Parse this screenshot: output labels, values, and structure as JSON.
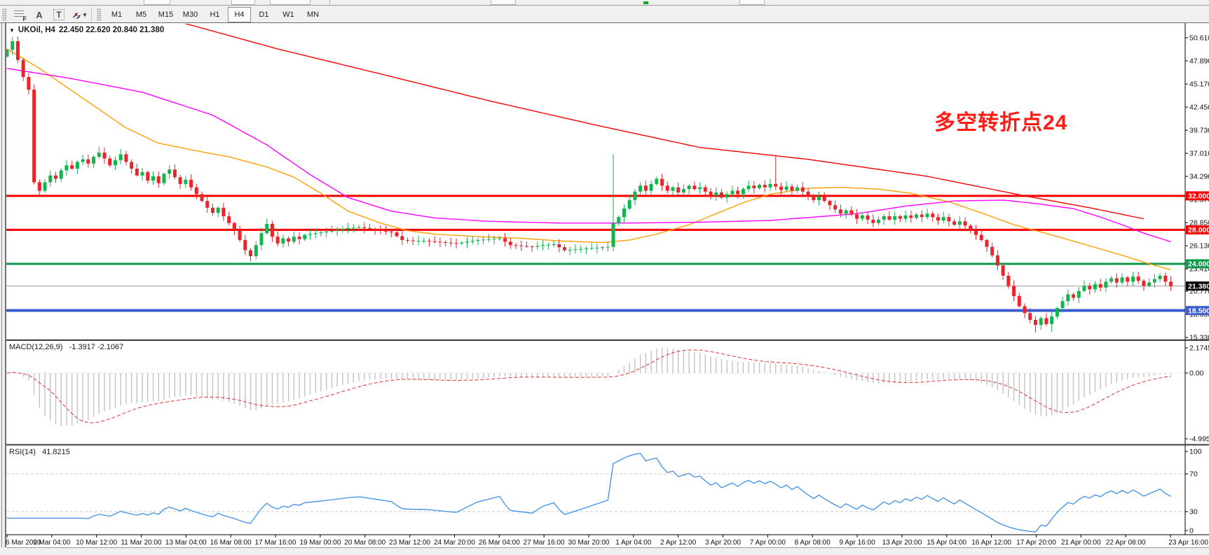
{
  "toolbar": {
    "tools": [
      {
        "id": "fibonacci-tool",
        "glyph": "F"
      },
      {
        "id": "text-tool",
        "glyph": "A"
      },
      {
        "id": "text-label-tool",
        "glyph": "T"
      },
      {
        "id": "arrow-tool",
        "glyph": "arrows",
        "dropdown": "▾"
      }
    ],
    "timeframes": [
      "M1",
      "M5",
      "M15",
      "M30",
      "H1",
      "H4",
      "D1",
      "W1",
      "MN"
    ],
    "active_timeframe": "H4"
  },
  "chart": {
    "title": {
      "collapse_glyph": "▼",
      "symbol": "UKOil, H4",
      "ohlc": "22.450 22.620 20.840 21.380"
    },
    "annotation": {
      "text": "多空转折点24",
      "color": "#fd1d15"
    }
  },
  "chart_data": {
    "type": "candlestick",
    "symbol": "UKOil",
    "timeframe": "H4",
    "ohlc_display": {
      "open": "22.450",
      "high": "22.620",
      "low": "20.840",
      "close": "21.380"
    },
    "price_axis_range": [
      15.33,
      50.61
    ],
    "price_axis_ticks": [
      "50.610",
      "47.890",
      "45.170",
      "42.450",
      "39.730",
      "37.010",
      "34.290",
      "31.570",
      "28.850",
      "26.130",
      "23.410",
      "20.770",
      "18.050",
      "15.330"
    ],
    "hlines": [
      {
        "price": 32.0,
        "label": "32.000",
        "color": "#f40000",
        "width": 3
      },
      {
        "price": 28.0,
        "label": "28.000",
        "color": "#f40000",
        "width": 3
      },
      {
        "price": 24.0,
        "label": "24.000",
        "color": "#0a9a4a",
        "width": 3
      },
      {
        "price": 18.5,
        "label": "18.500",
        "color": "#3a5ecf",
        "width": 4
      }
    ],
    "bid_line": {
      "price": 21.38,
      "label": "21.380",
      "line_color": "#9a9a9a",
      "tag_color": "#000000"
    },
    "candles": {
      "count": 216,
      "up_color": "#12b54d",
      "down_color": "#e8252a",
      "close_anchors": [
        [
          0,
          49.2
        ],
        [
          1,
          50.2
        ],
        [
          2,
          48.0
        ],
        [
          3,
          46.0
        ],
        [
          4,
          44.5
        ],
        [
          5,
          33.6
        ],
        [
          6,
          32.6
        ],
        [
          7,
          33.6
        ],
        [
          8,
          34.4
        ],
        [
          9,
          34.0
        ],
        [
          10,
          35.0
        ],
        [
          11,
          35.6
        ],
        [
          12,
          35.2
        ],
        [
          13,
          36.0
        ],
        [
          14,
          36.3
        ],
        [
          15,
          35.8
        ],
        [
          16,
          36.6
        ],
        [
          17,
          37.1
        ],
        [
          18,
          36.4
        ],
        [
          19,
          35.6
        ],
        [
          20,
          36.2
        ],
        [
          21,
          36.9
        ],
        [
          22,
          36.0
        ],
        [
          23,
          35.2
        ],
        [
          24,
          34.4
        ],
        [
          25,
          34.8
        ],
        [
          26,
          33.8
        ],
        [
          27,
          34.3
        ],
        [
          28,
          33.5
        ],
        [
          29,
          34.6
        ],
        [
          30,
          35.1
        ],
        [
          31,
          34.2
        ],
        [
          32,
          33.4
        ],
        [
          33,
          33.9
        ],
        [
          34,
          33.0
        ],
        [
          35,
          32.2
        ],
        [
          36,
          31.4
        ],
        [
          37,
          30.6
        ],
        [
          38,
          30.0
        ],
        [
          39,
          30.6
        ],
        [
          40,
          29.6
        ],
        [
          41,
          28.8
        ],
        [
          42,
          28.0
        ],
        [
          43,
          26.8
        ],
        [
          44,
          25.6
        ],
        [
          45,
          24.9
        ],
        [
          46,
          26.2
        ],
        [
          47,
          27.6
        ],
        [
          48,
          28.7
        ],
        [
          49,
          27.2
        ],
        [
          50,
          26.4
        ],
        [
          51,
          27.0
        ],
        [
          52,
          26.6
        ],
        [
          53,
          27.2
        ],
        [
          54,
          26.9
        ],
        [
          55,
          27.4
        ],
        [
          57,
          27.6
        ],
        [
          59,
          27.8
        ],
        [
          61,
          28.0
        ],
        [
          63,
          28.2
        ],
        [
          65,
          28.3
        ],
        [
          67,
          28.1
        ],
        [
          69,
          27.9
        ],
        [
          71,
          27.7
        ],
        [
          73,
          26.8
        ],
        [
          75,
          26.7
        ],
        [
          77,
          26.7
        ],
        [
          79,
          26.6
        ],
        [
          81,
          26.5
        ],
        [
          83,
          26.4
        ],
        [
          85,
          26.6
        ],
        [
          87,
          26.8
        ],
        [
          89,
          26.9
        ],
        [
          91,
          27.0
        ],
        [
          93,
          26.2
        ],
        [
          95,
          26.1
        ],
        [
          97,
          26.0
        ],
        [
          99,
          26.2
        ],
        [
          101,
          26.3
        ],
        [
          103,
          25.6
        ],
        [
          105,
          25.7
        ],
        [
          107,
          25.8
        ],
        [
          109,
          25.9
        ],
        [
          111,
          26.0
        ],
        [
          112,
          28.8
        ],
        [
          113,
          29.5
        ],
        [
          114,
          30.5
        ],
        [
          115,
          31.5
        ],
        [
          116,
          32.5
        ],
        [
          117,
          33.2
        ],
        [
          118,
          32.6
        ],
        [
          119,
          33.4
        ],
        [
          120,
          34.0
        ],
        [
          121,
          33.2
        ],
        [
          122,
          32.6
        ],
        [
          123,
          33.0
        ],
        [
          124,
          32.4
        ],
        [
          125,
          32.8
        ],
        [
          126,
          33.2
        ],
        [
          127,
          32.8
        ],
        [
          128,
          33.0
        ],
        [
          129,
          32.5
        ],
        [
          130,
          32.0
        ],
        [
          131,
          32.4
        ],
        [
          132,
          31.8
        ],
        [
          133,
          32.2
        ],
        [
          134,
          32.6
        ],
        [
          135,
          32.2
        ],
        [
          136,
          32.8
        ],
        [
          137,
          33.2
        ],
        [
          138,
          32.9
        ],
        [
          139,
          33.3
        ],
        [
          140,
          33.0
        ],
        [
          141,
          33.4
        ],
        [
          142,
          33.1
        ],
        [
          143,
          32.7
        ],
        [
          144,
          33.1
        ],
        [
          145,
          32.6
        ],
        [
          146,
          33.0
        ],
        [
          147,
          32.5
        ],
        [
          148,
          32.0
        ],
        [
          149,
          31.5
        ],
        [
          150,
          31.9
        ],
        [
          151,
          31.4
        ],
        [
          152,
          30.9
        ],
        [
          153,
          30.4
        ],
        [
          154,
          29.9
        ],
        [
          155,
          30.3
        ],
        [
          156,
          29.8
        ],
        [
          157,
          29.3
        ],
        [
          158,
          29.7
        ],
        [
          159,
          29.2
        ],
        [
          160,
          28.8
        ],
        [
          161,
          29.2
        ],
        [
          162,
          29.6
        ],
        [
          163,
          29.2
        ],
        [
          164,
          29.6
        ],
        [
          165,
          29.3
        ],
        [
          166,
          29.7
        ],
        [
          167,
          29.4
        ],
        [
          168,
          29.8
        ],
        [
          169,
          29.5
        ],
        [
          170,
          29.9
        ],
        [
          171,
          29.5
        ],
        [
          172,
          29.1
        ],
        [
          173,
          29.5
        ],
        [
          174,
          29.0
        ],
        [
          175,
          28.6
        ],
        [
          176,
          29.0
        ],
        [
          177,
          28.5
        ],
        [
          178,
          28.0
        ],
        [
          179,
          27.4
        ],
        [
          180,
          26.8
        ],
        [
          181,
          26.0
        ],
        [
          182,
          25.0
        ],
        [
          183,
          23.8
        ],
        [
          184,
          22.6
        ],
        [
          185,
          21.4
        ],
        [
          186,
          20.2
        ],
        [
          187,
          19.0
        ],
        [
          188,
          18.2
        ],
        [
          189,
          17.4
        ],
        [
          190,
          16.8
        ],
        [
          191,
          17.6
        ],
        [
          192,
          16.9
        ],
        [
          193,
          17.8
        ],
        [
          194,
          18.8
        ],
        [
          195,
          19.6
        ],
        [
          196,
          20.4
        ],
        [
          197,
          20.0
        ],
        [
          198,
          20.8
        ],
        [
          199,
          21.4
        ],
        [
          200,
          21.0
        ],
        [
          201,
          21.6
        ],
        [
          202,
          21.2
        ],
        [
          203,
          21.9
        ],
        [
          204,
          22.3
        ],
        [
          205,
          21.8
        ],
        [
          206,
          22.4
        ],
        [
          207,
          21.9
        ],
        [
          208,
          22.5
        ],
        [
          209,
          22.0
        ],
        [
          210,
          21.4
        ],
        [
          211,
          21.8
        ],
        [
          212,
          22.2
        ],
        [
          213,
          22.6
        ],
        [
          214,
          21.9
        ],
        [
          215,
          21.38
        ]
      ],
      "wick_overrides": {
        "17": {
          "high": 37.8
        },
        "45": {
          "low": 24.3
        },
        "48": {
          "high": 29.3
        },
        "112": {
          "high": 36.9
        },
        "142": {
          "high": 36.8
        },
        "190": {
          "low": 15.9
        },
        "193": {
          "low": 16.0
        }
      }
    },
    "moving_averages": [
      {
        "name": "ma-fast-orange",
        "color": "#ff9f00",
        "width": 1.4,
        "anchors": [
          [
            0,
            49.3
          ],
          [
            6,
            47.0
          ],
          [
            14,
            43.5
          ],
          [
            22,
            40.0
          ],
          [
            28,
            38.2
          ],
          [
            35,
            37.3
          ],
          [
            41,
            36.6
          ],
          [
            48,
            35.4
          ],
          [
            53,
            34.2
          ],
          [
            58,
            32.3
          ],
          [
            63,
            30.2
          ],
          [
            69,
            28.8
          ],
          [
            74,
            27.9
          ],
          [
            79,
            27.5
          ],
          [
            87,
            27.2
          ],
          [
            95,
            27.0
          ],
          [
            102,
            26.7
          ],
          [
            110,
            26.5
          ],
          [
            115,
            26.8
          ],
          [
            120,
            27.5
          ],
          [
            126,
            28.6
          ],
          [
            131,
            29.9
          ],
          [
            136,
            31.2
          ],
          [
            141,
            32.2
          ],
          [
            148,
            32.9
          ],
          [
            154,
            33.0
          ],
          [
            161,
            32.8
          ],
          [
            167,
            32.3
          ],
          [
            174,
            31.3
          ],
          [
            180,
            30.0
          ],
          [
            186,
            28.6
          ],
          [
            193,
            27.4
          ],
          [
            199,
            26.3
          ],
          [
            206,
            25.0
          ],
          [
            211,
            24.0
          ],
          [
            215,
            23.3
          ]
        ]
      },
      {
        "name": "ma-mid-magenta",
        "color": "#ff00ff",
        "width": 1.4,
        "anchors": [
          [
            0,
            47.0
          ],
          [
            12,
            45.8
          ],
          [
            25,
            44.2
          ],
          [
            38,
            41.5
          ],
          [
            48,
            38.0
          ],
          [
            56,
            34.5
          ],
          [
            63,
            31.8
          ],
          [
            71,
            30.2
          ],
          [
            79,
            29.4
          ],
          [
            89,
            29.0
          ],
          [
            102,
            28.8
          ],
          [
            115,
            28.8
          ],
          [
            128,
            28.9
          ],
          [
            141,
            29.1
          ],
          [
            157,
            29.9
          ],
          [
            166,
            30.8
          ],
          [
            175,
            31.4
          ],
          [
            184,
            31.5
          ],
          [
            190,
            31.1
          ],
          [
            197,
            30.5
          ],
          [
            202,
            29.5
          ],
          [
            206,
            28.6
          ],
          [
            210,
            27.6
          ],
          [
            214,
            26.8
          ],
          [
            215,
            26.6
          ]
        ]
      },
      {
        "name": "ma-slow-red",
        "color": "#f40000",
        "width": 1.4,
        "anchors": [
          [
            30,
            52.8
          ],
          [
            50,
            49.3
          ],
          [
            70,
            46.2
          ],
          [
            89,
            43.2
          ],
          [
            109,
            40.3
          ],
          [
            128,
            37.7
          ],
          [
            148,
            36.3
          ],
          [
            170,
            34.3
          ],
          [
            188,
            32.0
          ],
          [
            200,
            30.6
          ],
          [
            210,
            29.3
          ]
        ]
      }
    ],
    "macd": {
      "label": "MACD(12,26,9)",
      "display_values": "-1.3917 -2.1067",
      "fast": 12,
      "slow": 26,
      "signal": 9,
      "axis_ticks": [
        "2.1745",
        "0.00",
        "-4.9955"
      ],
      "histogram_color": "#c2c2c2",
      "signal_color": "#e03030"
    },
    "rsi": {
      "label": "RSI(14)",
      "display_value": "41.8215",
      "period": 14,
      "axis_ticks": [
        "100",
        "70",
        "30",
        "0"
      ],
      "levels": [
        70,
        30
      ],
      "color": "#3e8fe8"
    },
    "time_labels": [
      "6 Mar 2020",
      "9 Mar 04:00",
      "10 Mar 12:00",
      "11 Mar 20:00",
      "13 Mar 04:00",
      "16 Mar 08:00",
      "17 Mar 16:00",
      "19 Mar 00:00",
      "20 Mar 08:00",
      "23 Mar 12:00",
      "24 Mar 20:00",
      "26 Mar 04:00",
      "27 Mar 16:00",
      "30 Mar 20:00",
      "1 Apr 04:00",
      "2 Apr 12:00",
      "3 Apr 20:00",
      "7 Apr 00:00",
      "8 Apr 08:00",
      "9 Apr 16:00",
      "13 Apr 20:00",
      "15 Apr 04:00",
      "16 Apr 12:00",
      "17 Apr 20:00",
      "21 Apr 00:00",
      "22 Apr 08:00",
      "23 Apr 16:00"
    ]
  }
}
